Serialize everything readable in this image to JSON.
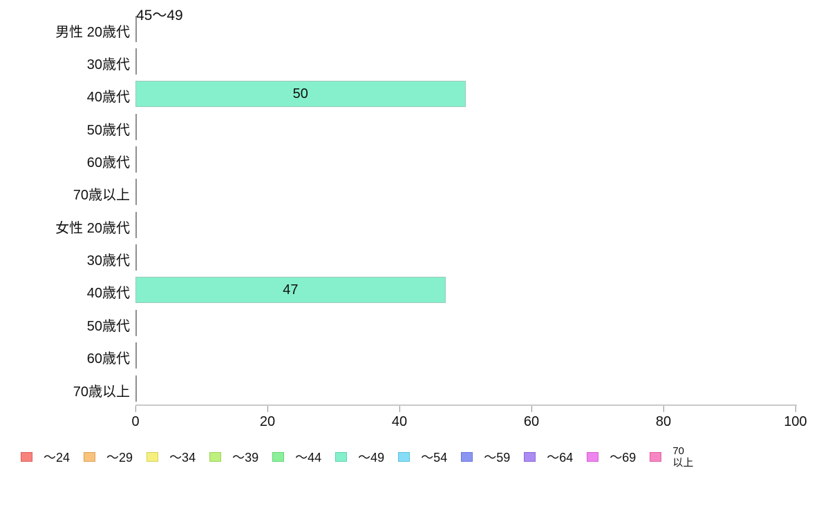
{
  "chart_data": {
    "type": "bar",
    "orientation": "horizontal",
    "title": "45〜49",
    "categories": [
      "男性 20歳代",
      "30歳代",
      "40歳代",
      "50歳代",
      "60歳代",
      "70歳以上",
      "女性 20歳代",
      "30歳代",
      "40歳代",
      "50歳代",
      "60歳代",
      "70歳以上"
    ],
    "values": [
      0,
      0,
      50,
      0,
      0,
      0,
      0,
      0,
      47,
      0,
      0,
      0
    ],
    "value_labels_shown": [
      "50",
      "47"
    ],
    "xlabel": "",
    "ylabel": "",
    "xlim": [
      0,
      100
    ],
    "x_ticks": [
      0,
      20,
      40,
      60,
      80,
      100
    ],
    "grid": "off",
    "bar_fill_color": "#85f0cb",
    "bar_border_color": "#9dc9ba",
    "zero_dash_color": "#8f8f8f",
    "axis_line_color": "#c9c9c9",
    "tick_mark_color": "#8f8f8f",
    "legend_position": "bottom",
    "legend": [
      {
        "label": "〜24",
        "fill": "#f8837d",
        "border": "#db5f5f"
      },
      {
        "label": "〜29",
        "fill": "#f9c27d",
        "border": "#dba25a"
      },
      {
        "label": "〜34",
        "fill": "#f5f07e",
        "border": "#d6d257"
      },
      {
        "label": "〜39",
        "fill": "#bef07e",
        "border": "#9bd457"
      },
      {
        "label": "〜44",
        "fill": "#8cf09b",
        "border": "#63d477"
      },
      {
        "label": "〜49",
        "fill": "#85f0cb",
        "border": "#5fd4a8"
      },
      {
        "label": "〜54",
        "fill": "#85ddf7",
        "border": "#5fc0dd"
      },
      {
        "label": "〜59",
        "fill": "#8b96f2",
        "border": "#6a77dd"
      },
      {
        "label": "〜64",
        "fill": "#ab8cf2",
        "border": "#8f66dd"
      },
      {
        "label": "〜69",
        "fill": "#ef85ef",
        "border": "#d55fd5"
      },
      {
        "label": "70以上",
        "label_line1": "70",
        "label_line2": "以上",
        "fill": "#f787c3",
        "border": "#dd5fa4"
      }
    ]
  },
  "layout_numbers": {}
}
